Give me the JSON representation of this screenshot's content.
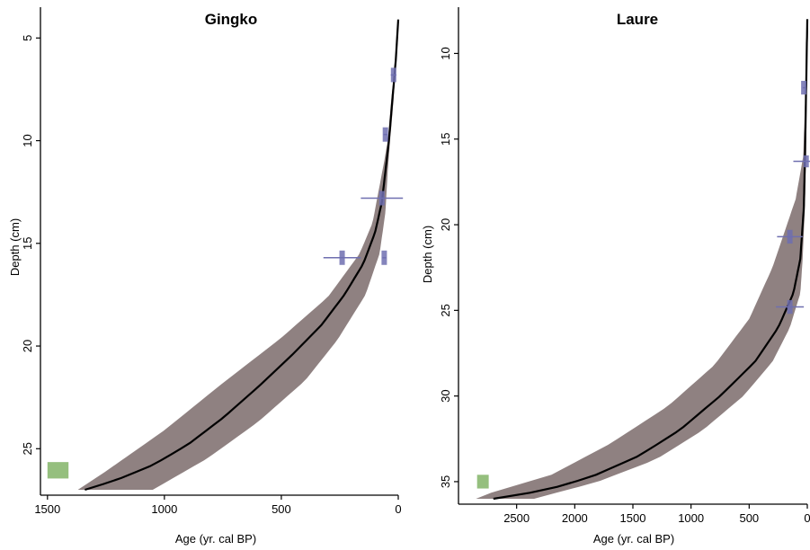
{
  "chart_data": [
    {
      "type": "line",
      "title": "Gingko",
      "xlabel": "Age (yr. cal BP)",
      "ylabel": "Depth (cm)",
      "x_reversed": true,
      "y_reversed": true,
      "xlim": [
        1530,
        0
      ],
      "ylim": [
        3.5,
        27.0
      ],
      "xticks": [
        1500,
        1000,
        500,
        0
      ],
      "yticks": [
        5,
        10,
        15,
        20,
        25
      ],
      "colors": {
        "band": "#8f8181",
        "median": "#000000",
        "dates": "#6f6fb0",
        "basal": "#8ab870"
      },
      "series": [
        {
          "role": "median",
          "points": [
            [
              0,
              4.1
            ],
            [
              10,
              6
            ],
            [
              25,
              8
            ],
            [
              40,
              10
            ],
            [
              55,
              11.5
            ],
            [
              70,
              13
            ],
            [
              100,
              14.5
            ],
            [
              150,
              16
            ],
            [
              230,
              17.5
            ],
            [
              330,
              19
            ],
            [
              460,
              20.5
            ],
            [
              600,
              22
            ],
            [
              750,
              23.5
            ],
            [
              900,
              24.8
            ],
            [
              1050,
              25.8
            ],
            [
              1200,
              26.5
            ],
            [
              1340,
              27
            ]
          ]
        },
        {
          "role": "upper",
          "points": [
            [
              0,
              4.1
            ],
            [
              12,
              6
            ],
            [
              30,
              8
            ],
            [
              45,
              10
            ],
            [
              60,
              11
            ],
            [
              110,
              14
            ],
            [
              165,
              15.5
            ],
            [
              300,
              17.6
            ],
            [
              500,
              19.6
            ],
            [
              750,
              21.8
            ],
            [
              1000,
              24.1
            ],
            [
              1250,
              26.1
            ],
            [
              1370,
              27
            ]
          ]
        },
        {
          "role": "lower",
          "points": [
            [
              0,
              4.1
            ],
            [
              8,
              6
            ],
            [
              20,
              8
            ],
            [
              35,
              10
            ],
            [
              45,
              11.5
            ],
            [
              55,
              13.5
            ],
            [
              80,
              15.5
            ],
            [
              140,
              17.5
            ],
            [
              260,
              19.7
            ],
            [
              400,
              21.7
            ],
            [
              600,
              23.7
            ],
            [
              820,
              25.5
            ],
            [
              1050,
              27
            ]
          ]
        }
      ],
      "dates": [
        {
          "age": 20,
          "age_err": 12,
          "depth": 6.8,
          "depth_err": 0.35
        },
        {
          "age": 55,
          "age_err": 8,
          "depth": 9.7,
          "depth_err": 0.35
        },
        {
          "age": 70,
          "age_err": 90,
          "depth": 12.8,
          "depth_err": 0.35
        },
        {
          "age": 60,
          "age_err": 8,
          "depth": 15.7,
          "depth_err": 0.35
        },
        {
          "age": 240,
          "age_err": 80,
          "depth": 15.7,
          "depth_err": 0.35
        }
      ],
      "basal_date": {
        "age_min": 1410,
        "age_max": 1500,
        "depth": 26.05,
        "depth_err": 0.4
      }
    },
    {
      "type": "line",
      "title": "Laure",
      "xlabel": "Age (yr. cal BP)",
      "ylabel": "Depth (cm)",
      "x_reversed": true,
      "y_reversed": true,
      "xlim": [
        3000,
        0
      ],
      "ylim": [
        7.3,
        36.0
      ],
      "xticks": [
        2500,
        2000,
        1500,
        1000,
        500,
        0
      ],
      "yticks": [
        10,
        15,
        20,
        25,
        30,
        35
      ],
      "colors": {
        "band": "#8f8181",
        "median": "#000000",
        "dates": "#6f6fb0",
        "basal": "#8ab870"
      },
      "series": [
        {
          "role": "median",
          "points": [
            [
              0,
              8
            ],
            [
              10,
              12
            ],
            [
              20,
              16
            ],
            [
              30,
              19
            ],
            [
              60,
              22
            ],
            [
              120,
              24
            ],
            [
              250,
              26
            ],
            [
              450,
              28
            ],
            [
              750,
              30
            ],
            [
              1100,
              32
            ],
            [
              1450,
              33.5
            ],
            [
              1850,
              34.7
            ],
            [
              2250,
              35.5
            ],
            [
              2700,
              36
            ]
          ]
        },
        {
          "role": "upper",
          "points": [
            [
              0,
              8
            ],
            [
              15,
              12
            ],
            [
              35,
              16
            ],
            [
              100,
              18.5
            ],
            [
              200,
              20.5
            ],
            [
              300,
              22.5
            ],
            [
              500,
              25.5
            ],
            [
              800,
              28.2
            ],
            [
              1200,
              30.6
            ],
            [
              1700,
              32.8
            ],
            [
              2200,
              34.6
            ],
            [
              2700,
              35.6
            ],
            [
              2850,
              36
            ]
          ]
        },
        {
          "role": "lower",
          "points": [
            [
              0,
              8
            ],
            [
              5,
              12
            ],
            [
              10,
              16
            ],
            [
              20,
              19
            ],
            [
              40,
              22
            ],
            [
              60,
              24
            ],
            [
              150,
              26
            ],
            [
              300,
              28
            ],
            [
              550,
              30
            ],
            [
              900,
              32
            ],
            [
              1300,
              33.7
            ],
            [
              1800,
              35
            ],
            [
              2350,
              36
            ]
          ]
        }
      ],
      "dates": [
        {
          "age": 30,
          "age_err": 10,
          "depth": 12,
          "depth_err": 0.4
        },
        {
          "age": 10,
          "age_err": 110,
          "depth": 16.3,
          "depth_err": 0.35
        },
        {
          "age": 150,
          "age_err": 110,
          "depth": 20.7,
          "depth_err": 0.4
        },
        {
          "age": 150,
          "age_err": 120,
          "depth": 24.8,
          "depth_err": 0.4
        }
      ],
      "basal_date": {
        "age_min": 2740,
        "age_max": 2840,
        "depth": 35.0,
        "depth_err": 0.4
      }
    }
  ]
}
